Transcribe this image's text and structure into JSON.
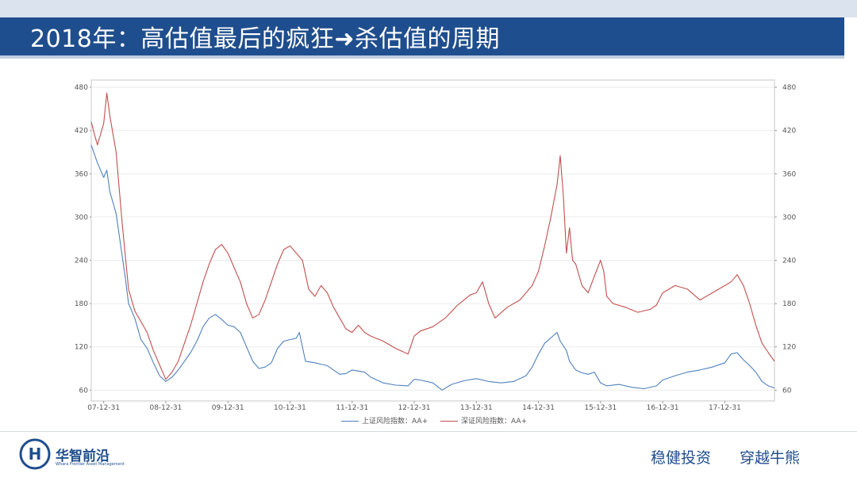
{
  "header": {
    "title": "2018年：高估值最后的疯狂➜杀估值的周期"
  },
  "chart_data": {
    "type": "line",
    "x_ticks": [
      "07-12-31",
      "08-12-31",
      "09-12-31",
      "10-12-31",
      "11-12-31",
      "12-12-31",
      "13-12-31",
      "14-12-31",
      "15-12-31",
      "16-12-31",
      "17-12-31"
    ],
    "y_left_ticks": [
      "480",
      "420",
      "360",
      "300",
      "240",
      "180",
      "120",
      "60"
    ],
    "y_right_ticks": [
      "480",
      "420",
      "360",
      "300",
      "240",
      "180",
      "120",
      "60"
    ],
    "ylim": [
      45,
      490
    ],
    "xlim": [
      2007.8,
      2018.8
    ],
    "grid": true,
    "legend_position": "bottom",
    "series": [
      {
        "name": "上证风险指数：AA+",
        "color": "#4f81bd",
        "points": [
          [
            2007.8,
            400
          ],
          [
            2007.9,
            375
          ],
          [
            2008.0,
            355
          ],
          [
            2008.05,
            365
          ],
          [
            2008.1,
            335
          ],
          [
            2008.2,
            305
          ],
          [
            2008.3,
            245
          ],
          [
            2008.35,
            215
          ],
          [
            2008.4,
            180
          ],
          [
            2008.5,
            160
          ],
          [
            2008.6,
            130
          ],
          [
            2008.7,
            118
          ],
          [
            2008.8,
            98
          ],
          [
            2008.9,
            80
          ],
          [
            2009.0,
            72
          ],
          [
            2009.1,
            78
          ],
          [
            2009.2,
            88
          ],
          [
            2009.3,
            100
          ],
          [
            2009.4,
            112
          ],
          [
            2009.5,
            128
          ],
          [
            2009.6,
            148
          ],
          [
            2009.7,
            160
          ],
          [
            2009.8,
            165
          ],
          [
            2009.9,
            158
          ],
          [
            2010.0,
            150
          ],
          [
            2010.1,
            148
          ],
          [
            2010.2,
            140
          ],
          [
            2010.3,
            120
          ],
          [
            2010.4,
            100
          ],
          [
            2010.5,
            90
          ],
          [
            2010.6,
            92
          ],
          [
            2010.7,
            98
          ],
          [
            2010.8,
            118
          ],
          [
            2010.9,
            128
          ],
          [
            2011.0,
            130
          ],
          [
            2011.1,
            132
          ],
          [
            2011.15,
            140
          ],
          [
            2011.25,
            100
          ],
          [
            2011.4,
            98
          ],
          [
            2011.5,
            96
          ],
          [
            2011.6,
            94
          ],
          [
            2011.7,
            88
          ],
          [
            2011.8,
            82
          ],
          [
            2011.9,
            83
          ],
          [
            2012.0,
            88
          ],
          [
            2012.2,
            85
          ],
          [
            2012.3,
            78
          ],
          [
            2012.5,
            70
          ],
          [
            2012.7,
            67
          ],
          [
            2012.9,
            66
          ],
          [
            2013.0,
            75
          ],
          [
            2013.1,
            74
          ],
          [
            2013.3,
            70
          ],
          [
            2013.45,
            60
          ],
          [
            2013.6,
            68
          ],
          [
            2013.8,
            73
          ],
          [
            2014.0,
            76
          ],
          [
            2014.2,
            72
          ],
          [
            2014.4,
            70
          ],
          [
            2014.6,
            72
          ],
          [
            2014.8,
            80
          ],
          [
            2014.9,
            92
          ],
          [
            2015.0,
            110
          ],
          [
            2015.1,
            125
          ],
          [
            2015.3,
            140
          ],
          [
            2015.35,
            128
          ],
          [
            2015.45,
            115
          ],
          [
            2015.5,
            100
          ],
          [
            2015.6,
            88
          ],
          [
            2015.7,
            84
          ],
          [
            2015.8,
            82
          ],
          [
            2015.9,
            85
          ],
          [
            2016.0,
            70
          ],
          [
            2016.1,
            66
          ],
          [
            2016.3,
            68
          ],
          [
            2016.5,
            64
          ],
          [
            2016.7,
            62
          ],
          [
            2016.9,
            66
          ],
          [
            2017.0,
            74
          ],
          [
            2017.2,
            80
          ],
          [
            2017.4,
            85
          ],
          [
            2017.6,
            88
          ],
          [
            2017.8,
            92
          ],
          [
            2018.0,
            98
          ],
          [
            2018.1,
            110
          ],
          [
            2018.2,
            112
          ],
          [
            2018.3,
            102
          ],
          [
            2018.4,
            94
          ],
          [
            2018.5,
            85
          ],
          [
            2018.6,
            72
          ],
          [
            2018.7,
            66
          ],
          [
            2018.8,
            63
          ]
        ]
      },
      {
        "name": "深证风险指数：AA+",
        "color": "#c0504d",
        "points": [
          [
            2007.8,
            432
          ],
          [
            2007.85,
            415
          ],
          [
            2007.9,
            400
          ],
          [
            2008.0,
            430
          ],
          [
            2008.05,
            472
          ],
          [
            2008.1,
            440
          ],
          [
            2008.2,
            390
          ],
          [
            2008.3,
            290
          ],
          [
            2008.4,
            200
          ],
          [
            2008.5,
            170
          ],
          [
            2008.6,
            155
          ],
          [
            2008.7,
            140
          ],
          [
            2008.8,
            115
          ],
          [
            2008.9,
            95
          ],
          [
            2009.0,
            75
          ],
          [
            2009.1,
            85
          ],
          [
            2009.2,
            100
          ],
          [
            2009.3,
            125
          ],
          [
            2009.4,
            150
          ],
          [
            2009.5,
            180
          ],
          [
            2009.6,
            210
          ],
          [
            2009.7,
            235
          ],
          [
            2009.8,
            255
          ],
          [
            2009.9,
            262
          ],
          [
            2010.0,
            250
          ],
          [
            2010.1,
            230
          ],
          [
            2010.2,
            210
          ],
          [
            2010.3,
            180
          ],
          [
            2010.4,
            160
          ],
          [
            2010.5,
            165
          ],
          [
            2010.6,
            185
          ],
          [
            2010.7,
            210
          ],
          [
            2010.8,
            235
          ],
          [
            2010.9,
            255
          ],
          [
            2011.0,
            260
          ],
          [
            2011.1,
            250
          ],
          [
            2011.2,
            240
          ],
          [
            2011.3,
            200
          ],
          [
            2011.4,
            190
          ],
          [
            2011.5,
            205
          ],
          [
            2011.6,
            195
          ],
          [
            2011.7,
            175
          ],
          [
            2011.8,
            160
          ],
          [
            2011.9,
            145
          ],
          [
            2012.0,
            140
          ],
          [
            2012.1,
            150
          ],
          [
            2012.2,
            140
          ],
          [
            2012.3,
            135
          ],
          [
            2012.5,
            128
          ],
          [
            2012.7,
            118
          ],
          [
            2012.9,
            110
          ],
          [
            2013.0,
            135
          ],
          [
            2013.1,
            142
          ],
          [
            2013.3,
            148
          ],
          [
            2013.5,
            160
          ],
          [
            2013.7,
            178
          ],
          [
            2013.9,
            192
          ],
          [
            2014.0,
            195
          ],
          [
            2014.1,
            210
          ],
          [
            2014.2,
            180
          ],
          [
            2014.3,
            160
          ],
          [
            2014.5,
            175
          ],
          [
            2014.7,
            185
          ],
          [
            2014.9,
            205
          ],
          [
            2015.0,
            225
          ],
          [
            2015.1,
            260
          ],
          [
            2015.2,
            300
          ],
          [
            2015.3,
            345
          ],
          [
            2015.35,
            385
          ],
          [
            2015.4,
            330
          ],
          [
            2015.45,
            250
          ],
          [
            2015.5,
            285
          ],
          [
            2015.55,
            240
          ],
          [
            2015.6,
            235
          ],
          [
            2015.7,
            205
          ],
          [
            2015.8,
            195
          ],
          [
            2015.9,
            218
          ],
          [
            2016.0,
            240
          ],
          [
            2016.05,
            225
          ],
          [
            2016.1,
            190
          ],
          [
            2016.2,
            180
          ],
          [
            2016.4,
            175
          ],
          [
            2016.6,
            168
          ],
          [
            2016.8,
            172
          ],
          [
            2016.9,
            178
          ],
          [
            2017.0,
            195
          ],
          [
            2017.2,
            205
          ],
          [
            2017.4,
            200
          ],
          [
            2017.6,
            185
          ],
          [
            2017.8,
            195
          ],
          [
            2018.0,
            205
          ],
          [
            2018.1,
            210
          ],
          [
            2018.2,
            220
          ],
          [
            2018.3,
            205
          ],
          [
            2018.4,
            180
          ],
          [
            2018.5,
            150
          ],
          [
            2018.6,
            125
          ],
          [
            2018.7,
            112
          ],
          [
            2018.8,
            100
          ]
        ]
      }
    ]
  },
  "footer": {
    "brand_name": "华智前沿",
    "brand_sub": "Whara Frontier Asset Management",
    "slogan_left": "稳健投资",
    "slogan_right": "穿越牛熊",
    "logo_letter": "H"
  }
}
